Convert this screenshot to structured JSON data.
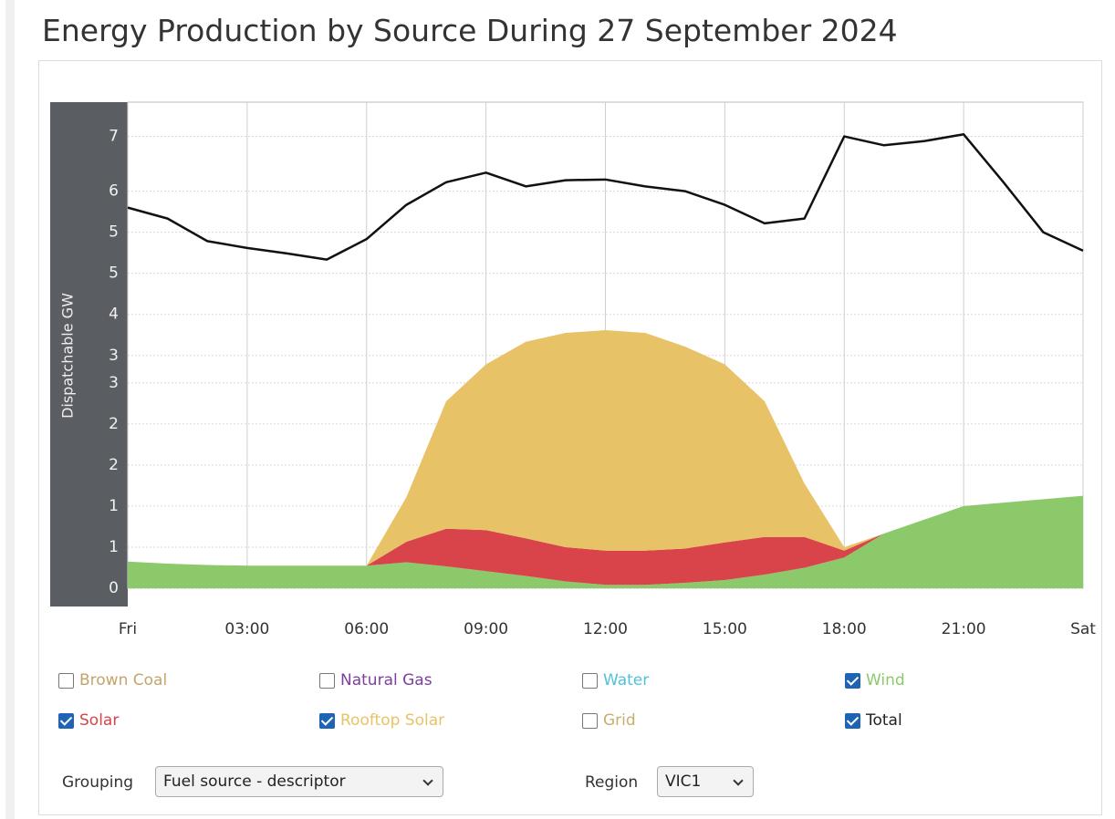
{
  "chart_data": {
    "type": "area",
    "title": "Energy Production by Source During 27 September 2024",
    "y_label": "Dispatchable GW",
    "x": [
      0,
      1,
      2,
      3,
      4,
      5,
      6,
      7,
      8,
      9,
      10,
      11,
      12,
      13,
      14,
      15,
      16,
      17,
      18,
      19,
      20,
      21,
      22,
      23,
      24
    ],
    "xlim": [
      0,
      24
    ],
    "xticks": [
      {
        "value": 0,
        "label": "Fri"
      },
      {
        "value": 3,
        "label": "03:00"
      },
      {
        "value": 6,
        "label": "06:00"
      },
      {
        "value": 9,
        "label": "09:00"
      },
      {
        "value": 12,
        "label": "12:00"
      },
      {
        "value": 15,
        "label": "15:00"
      },
      {
        "value": 18,
        "label": "18:00"
      },
      {
        "value": 21,
        "label": "21:00"
      },
      {
        "value": 24,
        "label": "Sat"
      }
    ],
    "ylim": [
      0,
      7.1
    ],
    "yticks": [
      0,
      {
        "value": 0.6,
        "label": "1"
      },
      {
        "value": 1.2,
        "label": "1"
      },
      {
        "value": 1.8,
        "label": "2"
      },
      {
        "value": 2.4,
        "label": "2"
      },
      3,
      {
        "value": 3.4,
        "label": "3"
      },
      4,
      {
        "value": 4.6,
        "label": "5"
      },
      {
        "value": 5.2,
        "label": "5"
      },
      {
        "value": 5.8,
        "label": "6"
      },
      {
        "value": 6.6,
        "label": "7"
      }
    ],
    "grid": true,
    "stacked": true,
    "series": [
      {
        "name": "Brown Coal",
        "color": "#c4a46c",
        "checked": false
      },
      {
        "name": "Natural Gas",
        "color": "#7b3f9e",
        "checked": false
      },
      {
        "name": "Water",
        "color": "#4fc3d6",
        "checked": false
      },
      {
        "name": "Wind",
        "color": "#8cc96a",
        "checked": true,
        "kind": "area",
        "values": [
          0.39,
          0.36,
          0.34,
          0.33,
          0.33,
          0.33,
          0.33,
          0.38,
          0.32,
          0.25,
          0.18,
          0.1,
          0.05,
          0.05,
          0.08,
          0.12,
          0.2,
          0.3,
          0.45,
          0.8,
          1.0,
          1.2,
          1.25,
          1.3,
          1.35
        ]
      },
      {
        "name": "Solar",
        "color": "#d9434a",
        "checked": true,
        "kind": "area",
        "values": [
          0,
          0,
          0,
          0,
          0,
          0,
          0,
          0.3,
          0.55,
          0.6,
          0.55,
          0.5,
          0.5,
          0.5,
          0.5,
          0.55,
          0.55,
          0.45,
          0.1,
          0,
          0,
          0,
          0,
          0,
          0
        ]
      },
      {
        "name": "Rooftop Solar",
        "color": "#e8c266",
        "checked": true,
        "kind": "area",
        "values": [
          0,
          0,
          0,
          0,
          0,
          0,
          0,
          0.65,
          1.86,
          2.42,
          2.87,
          3.13,
          3.22,
          3.18,
          2.95,
          2.6,
          1.98,
          0.78,
          0.05,
          0,
          0,
          0,
          0,
          0,
          0
        ]
      },
      {
        "name": "Grid",
        "color": "#c8ae6e",
        "checked": false
      },
      {
        "name": "Total",
        "color": "#111111",
        "checked": true,
        "kind": "line",
        "values": [
          5.56,
          5.4,
          5.07,
          4.97,
          4.89,
          4.8,
          5.1,
          5.6,
          5.93,
          6.07,
          5.87,
          5.96,
          5.97,
          5.87,
          5.8,
          5.6,
          5.33,
          5.4,
          6.6,
          6.47,
          6.53,
          6.63,
          5.93,
          5.2,
          4.93
        ]
      }
    ]
  },
  "controls": {
    "grouping_label": "Grouping",
    "grouping_value": "Fuel source - descriptor",
    "region_label": "Region",
    "region_value": "VIC1"
  }
}
